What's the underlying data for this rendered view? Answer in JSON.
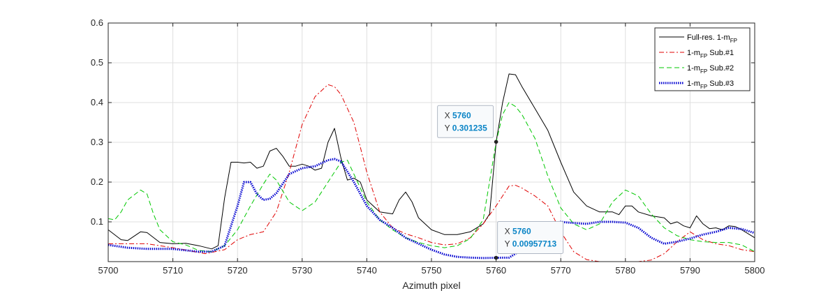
{
  "chart_data": {
    "type": "line",
    "title": "",
    "xlabel": "Azimuth pixel",
    "ylabel": "",
    "xlim": [
      5700,
      5800
    ],
    "ylim": [
      0,
      0.6
    ],
    "x_ticks": [
      "5700",
      "5710",
      "5720",
      "5730",
      "5740",
      "5750",
      "5760",
      "5770",
      "5780",
      "5790",
      "5800"
    ],
    "y_ticks": [
      "0.1",
      "0.2",
      "0.3",
      "0.4",
      "0.5",
      "0.6"
    ],
    "grid": true,
    "legend_position": "top-right",
    "series": [
      {
        "name": "Full-res. 1-m",
        "name_sub": "FP",
        "name_suffix": "",
        "color": "#000000",
        "style": "solid",
        "points": [
          [
            5700,
            0.08
          ],
          [
            5702,
            0.055
          ],
          [
            5703,
            0.053
          ],
          [
            5705,
            0.075
          ],
          [
            5706,
            0.073
          ],
          [
            5708,
            0.048
          ],
          [
            5710,
            0.045
          ],
          [
            5712,
            0.046
          ],
          [
            5714,
            0.04
          ],
          [
            5716,
            0.032
          ],
          [
            5717,
            0.04
          ],
          [
            5718,
            0.16
          ],
          [
            5719,
            0.25
          ],
          [
            5720,
            0.25
          ],
          [
            5721,
            0.248
          ],
          [
            5722,
            0.25
          ],
          [
            5723,
            0.235
          ],
          [
            5724,
            0.24
          ],
          [
            5725,
            0.278
          ],
          [
            5726,
            0.285
          ],
          [
            5727,
            0.265
          ],
          [
            5728,
            0.24
          ],
          [
            5729,
            0.24
          ],
          [
            5730,
            0.245
          ],
          [
            5731,
            0.24
          ],
          [
            5732,
            0.23
          ],
          [
            5733,
            0.235
          ],
          [
            5734,
            0.3
          ],
          [
            5735,
            0.335
          ],
          [
            5736,
            0.26
          ],
          [
            5737,
            0.205
          ],
          [
            5738,
            0.21
          ],
          [
            5739,
            0.2
          ],
          [
            5740,
            0.155
          ],
          [
            5742,
            0.125
          ],
          [
            5744,
            0.12
          ],
          [
            5745,
            0.155
          ],
          [
            5746,
            0.175
          ],
          [
            5747,
            0.15
          ],
          [
            5748,
            0.11
          ],
          [
            5750,
            0.08
          ],
          [
            5752,
            0.068
          ],
          [
            5754,
            0.068
          ],
          [
            5756,
            0.075
          ],
          [
            5758,
            0.095
          ],
          [
            5759,
            0.12
          ],
          [
            5760,
            0.3
          ],
          [
            5761,
            0.4
          ],
          [
            5762,
            0.472
          ],
          [
            5763,
            0.47
          ],
          [
            5764,
            0.44
          ],
          [
            5766,
            0.385
          ],
          [
            5768,
            0.33
          ],
          [
            5770,
            0.25
          ],
          [
            5772,
            0.175
          ],
          [
            5774,
            0.14
          ],
          [
            5776,
            0.125
          ],
          [
            5778,
            0.125
          ],
          [
            5779,
            0.118
          ],
          [
            5780,
            0.14
          ],
          [
            5781,
            0.14
          ],
          [
            5782,
            0.125
          ],
          [
            5784,
            0.115
          ],
          [
            5786,
            0.11
          ],
          [
            5787,
            0.095
          ],
          [
            5788,
            0.1
          ],
          [
            5789,
            0.09
          ],
          [
            5790,
            0.085
          ],
          [
            5791,
            0.115
          ],
          [
            5792,
            0.095
          ],
          [
            5793,
            0.083
          ],
          [
            5794,
            0.085
          ],
          [
            5795,
            0.08
          ],
          [
            5796,
            0.09
          ],
          [
            5797,
            0.088
          ],
          [
            5798,
            0.08
          ],
          [
            5800,
            0.06
          ]
        ]
      },
      {
        "name": "1-m",
        "name_sub": "FP",
        "name_suffix": " Sub.#1",
        "color": "#e00000",
        "style": "dashdot",
        "points": [
          [
            5700,
            0.045
          ],
          [
            5703,
            0.045
          ],
          [
            5706,
            0.045
          ],
          [
            5710,
            0.035
          ],
          [
            5715,
            0.02
          ],
          [
            5718,
            0.03
          ],
          [
            5720,
            0.055
          ],
          [
            5722,
            0.068
          ],
          [
            5724,
            0.075
          ],
          [
            5726,
            0.125
          ],
          [
            5728,
            0.225
          ],
          [
            5730,
            0.345
          ],
          [
            5732,
            0.415
          ],
          [
            5734,
            0.445
          ],
          [
            5735,
            0.44
          ],
          [
            5736,
            0.42
          ],
          [
            5738,
            0.35
          ],
          [
            5740,
            0.225
          ],
          [
            5742,
            0.125
          ],
          [
            5744,
            0.085
          ],
          [
            5746,
            0.07
          ],
          [
            5748,
            0.06
          ],
          [
            5750,
            0.048
          ],
          [
            5752,
            0.042
          ],
          [
            5754,
            0.045
          ],
          [
            5756,
            0.06
          ],
          [
            5758,
            0.095
          ],
          [
            5760,
            0.14
          ],
          [
            5761,
            0.165
          ],
          [
            5762,
            0.19
          ],
          [
            5763,
            0.192
          ],
          [
            5764,
            0.185
          ],
          [
            5766,
            0.165
          ],
          [
            5768,
            0.14
          ],
          [
            5770,
            0.075
          ],
          [
            5772,
            0.025
          ],
          [
            5774,
            0.005
          ],
          [
            5776,
            0.0
          ],
          [
            5778,
            0.0
          ],
          [
            5780,
            0.0
          ],
          [
            5782,
            0.0
          ],
          [
            5784,
            0.004
          ],
          [
            5786,
            0.02
          ],
          [
            5788,
            0.05
          ],
          [
            5790,
            0.075
          ],
          [
            5792,
            0.055
          ],
          [
            5794,
            0.045
          ],
          [
            5796,
            0.04
          ],
          [
            5798,
            0.03
          ],
          [
            5800,
            0.025
          ]
        ]
      },
      {
        "name": "1-m",
        "name_sub": "FP",
        "name_suffix": " Sub.#2",
        "color": "#00c800",
        "style": "dashed",
        "points": [
          [
            5700,
            0.108
          ],
          [
            5701,
            0.105
          ],
          [
            5702,
            0.125
          ],
          [
            5703,
            0.155
          ],
          [
            5705,
            0.18
          ],
          [
            5706,
            0.17
          ],
          [
            5707,
            0.12
          ],
          [
            5708,
            0.08
          ],
          [
            5710,
            0.05
          ],
          [
            5712,
            0.042
          ],
          [
            5714,
            0.028
          ],
          [
            5716,
            0.025
          ],
          [
            5718,
            0.04
          ],
          [
            5720,
            0.08
          ],
          [
            5722,
            0.14
          ],
          [
            5724,
            0.195
          ],
          [
            5725,
            0.22
          ],
          [
            5726,
            0.205
          ],
          [
            5728,
            0.15
          ],
          [
            5730,
            0.128
          ],
          [
            5732,
            0.15
          ],
          [
            5734,
            0.2
          ],
          [
            5736,
            0.25
          ],
          [
            5737,
            0.255
          ],
          [
            5738,
            0.22
          ],
          [
            5740,
            0.15
          ],
          [
            5742,
            0.105
          ],
          [
            5744,
            0.08
          ],
          [
            5746,
            0.06
          ],
          [
            5748,
            0.048
          ],
          [
            5750,
            0.04
          ],
          [
            5752,
            0.035
          ],
          [
            5754,
            0.04
          ],
          [
            5756,
            0.058
          ],
          [
            5758,
            0.105
          ],
          [
            5760,
            0.3
          ],
          [
            5761,
            0.37
          ],
          [
            5762,
            0.4
          ],
          [
            5763,
            0.39
          ],
          [
            5764,
            0.37
          ],
          [
            5766,
            0.31
          ],
          [
            5768,
            0.215
          ],
          [
            5770,
            0.135
          ],
          [
            5772,
            0.095
          ],
          [
            5774,
            0.08
          ],
          [
            5776,
            0.095
          ],
          [
            5778,
            0.15
          ],
          [
            5780,
            0.18
          ],
          [
            5782,
            0.165
          ],
          [
            5784,
            0.12
          ],
          [
            5786,
            0.085
          ],
          [
            5788,
            0.065
          ],
          [
            5790,
            0.055
          ],
          [
            5792,
            0.05
          ],
          [
            5794,
            0.048
          ],
          [
            5796,
            0.048
          ],
          [
            5798,
            0.042
          ],
          [
            5800,
            0.025
          ]
        ]
      },
      {
        "name": "1-m",
        "name_sub": "FP",
        "name_suffix": " Sub.#3",
        "color": "#0000d0",
        "style": "dotted",
        "points": [
          [
            5700,
            0.042
          ],
          [
            5703,
            0.035
          ],
          [
            5706,
            0.032
          ],
          [
            5710,
            0.032
          ],
          [
            5714,
            0.025
          ],
          [
            5716,
            0.025
          ],
          [
            5718,
            0.04
          ],
          [
            5720,
            0.14
          ],
          [
            5721,
            0.2
          ],
          [
            5722,
            0.2
          ],
          [
            5723,
            0.17
          ],
          [
            5724,
            0.155
          ],
          [
            5725,
            0.158
          ],
          [
            5726,
            0.172
          ],
          [
            5728,
            0.22
          ],
          [
            5730,
            0.235
          ],
          [
            5732,
            0.24
          ],
          [
            5734,
            0.255
          ],
          [
            5735,
            0.258
          ],
          [
            5736,
            0.252
          ],
          [
            5738,
            0.2
          ],
          [
            5740,
            0.14
          ],
          [
            5742,
            0.105
          ],
          [
            5744,
            0.085
          ],
          [
            5746,
            0.06
          ],
          [
            5748,
            0.045
          ],
          [
            5750,
            0.03
          ],
          [
            5752,
            0.018
          ],
          [
            5754,
            0.012
          ],
          [
            5756,
            0.01
          ],
          [
            5758,
            0.009
          ],
          [
            5760,
            0.0096
          ],
          [
            5762,
            0.01
          ],
          [
            5764,
            0.03
          ],
          [
            5766,
            0.07
          ],
          [
            5768,
            0.095
          ],
          [
            5770,
            0.1
          ],
          [
            5772,
            0.097
          ],
          [
            5774,
            0.095
          ],
          [
            5776,
            0.1
          ],
          [
            5778,
            0.1
          ],
          [
            5780,
            0.098
          ],
          [
            5782,
            0.085
          ],
          [
            5784,
            0.06
          ],
          [
            5786,
            0.045
          ],
          [
            5788,
            0.05
          ],
          [
            5790,
            0.058
          ],
          [
            5792,
            0.068
          ],
          [
            5794,
            0.075
          ],
          [
            5796,
            0.085
          ],
          [
            5798,
            0.082
          ],
          [
            5800,
            0.072
          ]
        ]
      }
    ],
    "datatips": [
      {
        "x_label": "X",
        "x_value": "5760",
        "y_label": "Y",
        "y_value": "0.301235",
        "x": 5760,
        "y": 0.301235
      },
      {
        "x_label": "X",
        "x_value": "5760",
        "y_label": "Y",
        "y_value": "0.00957713",
        "x": 5760,
        "y": 0.00957713
      }
    ]
  }
}
